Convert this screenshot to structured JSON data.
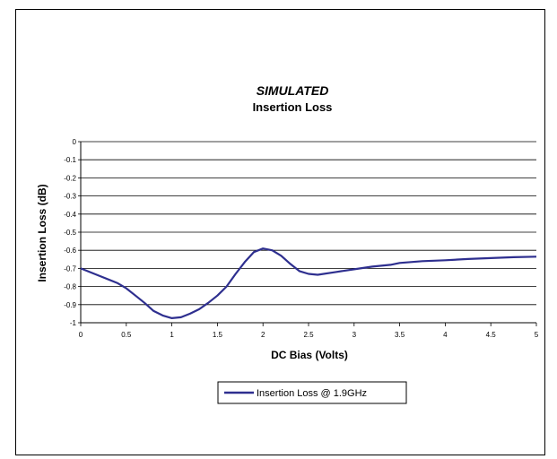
{
  "chart_data": {
    "type": "line",
    "title": "SIMULATED",
    "subtitle": "Insertion Loss",
    "xlabel": "DC Bias (Volts)",
    "ylabel": "Insertion Loss (dB)",
    "xlim": [
      0,
      5
    ],
    "ylim": [
      -1,
      0
    ],
    "xticks": [
      0,
      0.5,
      1,
      1.5,
      2,
      2.5,
      3,
      3.5,
      4,
      4.5,
      5
    ],
    "xtick_labels": [
      "0",
      "0.5",
      "1",
      "1.5",
      "2",
      "2.5",
      "3",
      "3.5",
      "4",
      "4.5",
      "5"
    ],
    "yticks": [
      0,
      -0.1,
      -0.2,
      -0.3,
      -0.4,
      -0.5,
      -0.6,
      -0.7,
      -0.8,
      -0.9,
      -1
    ],
    "ytick_labels": [
      "0",
      "-0.1",
      "-0.2",
      "-0.3",
      "-0.4",
      "-0.5",
      "-0.6",
      "-0.7",
      "-0.8",
      "-0.9",
      "-1"
    ],
    "grid": "horizontal",
    "legend_position": "bottom-center",
    "series": [
      {
        "name": "Insertion Loss @ 1.9GHz",
        "color": "#2e2f8f",
        "x": [
          0,
          0.2,
          0.4,
          0.5,
          0.6,
          0.7,
          0.8,
          0.9,
          1.0,
          1.1,
          1.2,
          1.3,
          1.4,
          1.5,
          1.6,
          1.7,
          1.8,
          1.9,
          2.0,
          2.1,
          2.2,
          2.3,
          2.4,
          2.5,
          2.6,
          2.8,
          3.0,
          3.2,
          3.4,
          3.5,
          3.75,
          4.0,
          4.25,
          4.5,
          4.75,
          5.0
        ],
        "y": [
          -0.7,
          -0.74,
          -0.78,
          -0.81,
          -0.85,
          -0.89,
          -0.935,
          -0.96,
          -0.975,
          -0.97,
          -0.95,
          -0.925,
          -0.89,
          -0.85,
          -0.8,
          -0.73,
          -0.665,
          -0.61,
          -0.59,
          -0.6,
          -0.63,
          -0.675,
          -0.715,
          -0.73,
          -0.735,
          -0.72,
          -0.705,
          -0.69,
          -0.68,
          -0.67,
          -0.66,
          -0.655,
          -0.648,
          -0.643,
          -0.638,
          -0.635
        ]
      }
    ]
  }
}
